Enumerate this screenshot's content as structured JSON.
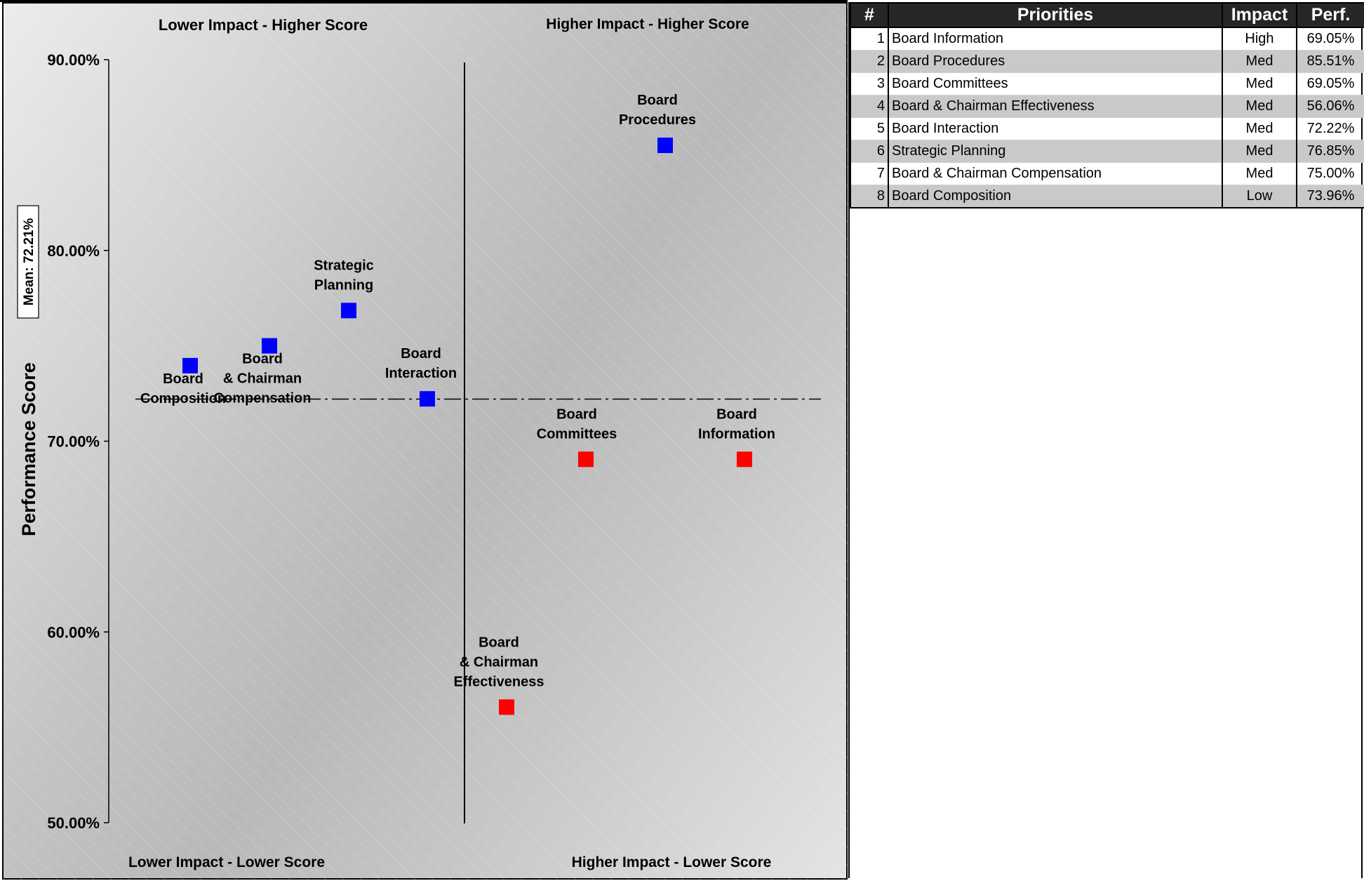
{
  "chart_data": {
    "type": "scatter",
    "quadrants": {
      "top_left": "Lower Impact - Higher Score",
      "top_right": "Higher Impact - Higher Score",
      "bottom_left": "Lower Impact - Lower Score",
      "bottom_right": "Higher Impact - Lower Score"
    },
    "ylabel": "Performance Score",
    "ylim": [
      50,
      90
    ],
    "yticks": [
      90,
      80,
      70,
      60,
      50
    ],
    "ytick_labels": [
      "90.00%",
      "80.00%",
      "70.00%",
      "60.00%",
      "50.00%"
    ],
    "mean": 72.21,
    "mean_label": "Mean: 72.21%",
    "colors": {
      "above_mean": "#0000ff",
      "below_mean": "#ff0000"
    },
    "points": [
      {
        "label": [
          "Board",
          "Composition"
        ],
        "y": 73.96,
        "color": "#0000ff"
      },
      {
        "label": [
          "Board",
          "& Chairman",
          "Compensation"
        ],
        "y": 75.0,
        "color": "#0000ff"
      },
      {
        "label": [
          "Strategic",
          "Planning"
        ],
        "y": 76.85,
        "color": "#0000ff"
      },
      {
        "label": [
          "Board",
          "Interaction"
        ],
        "y": 72.22,
        "color": "#0000ff"
      },
      {
        "label": [
          "Board",
          "& Chairman",
          "Effectiveness"
        ],
        "y": 56.06,
        "color": "#ff0000"
      },
      {
        "label": [
          "Board",
          "Committees"
        ],
        "y": 69.05,
        "color": "#ff0000"
      },
      {
        "label": [
          "Board",
          "Procedures"
        ],
        "y": 85.51,
        "color": "#0000ff"
      },
      {
        "label": [
          "Board",
          "Information"
        ],
        "y": 69.05,
        "color": "#ff0000"
      }
    ]
  },
  "table": {
    "headers": {
      "num": "#",
      "priorities": "Priorities",
      "impact": "Impact",
      "perf": "Perf."
    },
    "rows": [
      {
        "num": "1",
        "name": "Board Information",
        "impact": "High",
        "perf": "69.05%"
      },
      {
        "num": "2",
        "name": "Board Procedures",
        "impact": "Med",
        "perf": "85.51%"
      },
      {
        "num": "3",
        "name": "Board Committees",
        "impact": "Med",
        "perf": "69.05%"
      },
      {
        "num": "4",
        "name": "Board & Chairman Effectiveness",
        "impact": "Med",
        "perf": "56.06%"
      },
      {
        "num": "5",
        "name": "Board Interaction",
        "impact": "Med",
        "perf": "72.22%"
      },
      {
        "num": "6",
        "name": "Strategic Planning",
        "impact": "Med",
        "perf": "76.85%"
      },
      {
        "num": "7",
        "name": "Board & Chairman Compensation",
        "impact": "Med",
        "perf": "75.00%"
      },
      {
        "num": "8",
        "name": "Board Composition",
        "impact": "Low",
        "perf": "73.96%"
      }
    ]
  }
}
